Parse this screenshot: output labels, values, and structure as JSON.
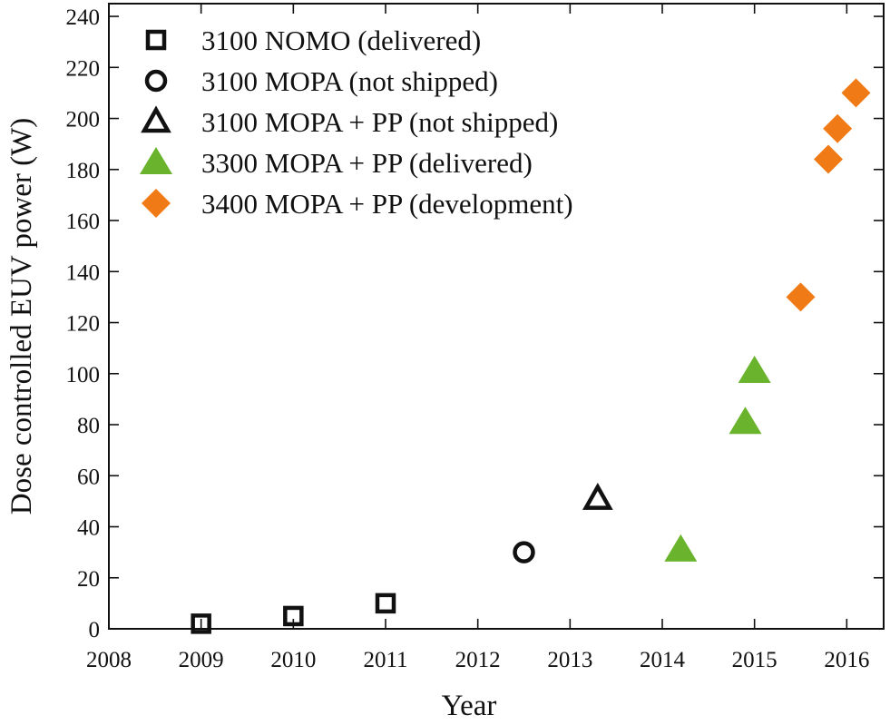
{
  "chart_data": {
    "type": "scatter",
    "title": "",
    "xlabel": "Year",
    "ylabel": "Dose controlled EUV power (W)",
    "xlim": [
      2008,
      2016.4
    ],
    "ylim": [
      0,
      245
    ],
    "x_ticks": [
      2008,
      2009,
      2010,
      2011,
      2012,
      2013,
      2014,
      2015,
      2016
    ],
    "y_ticks": [
      0,
      20,
      40,
      60,
      80,
      100,
      120,
      140,
      160,
      180,
      200,
      220,
      240
    ],
    "grid": false,
    "legend_position": "top-left",
    "series": [
      {
        "name": "3100 NOMO (delivered)",
        "marker": "square-open",
        "color": "#111111",
        "points": [
          {
            "x": 2009.0,
            "y": 2
          },
          {
            "x": 2010.0,
            "y": 5
          },
          {
            "x": 2011.0,
            "y": 10
          }
        ]
      },
      {
        "name": "3100 MOPA (not shipped)",
        "marker": "circle-open",
        "color": "#111111",
        "points": [
          {
            "x": 2012.5,
            "y": 30
          }
        ]
      },
      {
        "name": "3100 MOPA + PP (not shipped)",
        "marker": "triangle-open",
        "color": "#111111",
        "points": [
          {
            "x": 2013.3,
            "y": 51
          }
        ]
      },
      {
        "name": "3300 MOPA + PP (delivered)",
        "marker": "triangle-filled",
        "color": "#6ab42d",
        "points": [
          {
            "x": 2014.2,
            "y": 31
          },
          {
            "x": 2014.9,
            "y": 81
          },
          {
            "x": 2015.0,
            "y": 101
          }
        ]
      },
      {
        "name": "3400 MOPA + PP (development)",
        "marker": "diamond-filled",
        "color": "#f07b16",
        "points": [
          {
            "x": 2015.5,
            "y": 130
          },
          {
            "x": 2015.8,
            "y": 184
          },
          {
            "x": 2015.9,
            "y": 196
          },
          {
            "x": 2016.1,
            "y": 210
          }
        ]
      }
    ]
  }
}
